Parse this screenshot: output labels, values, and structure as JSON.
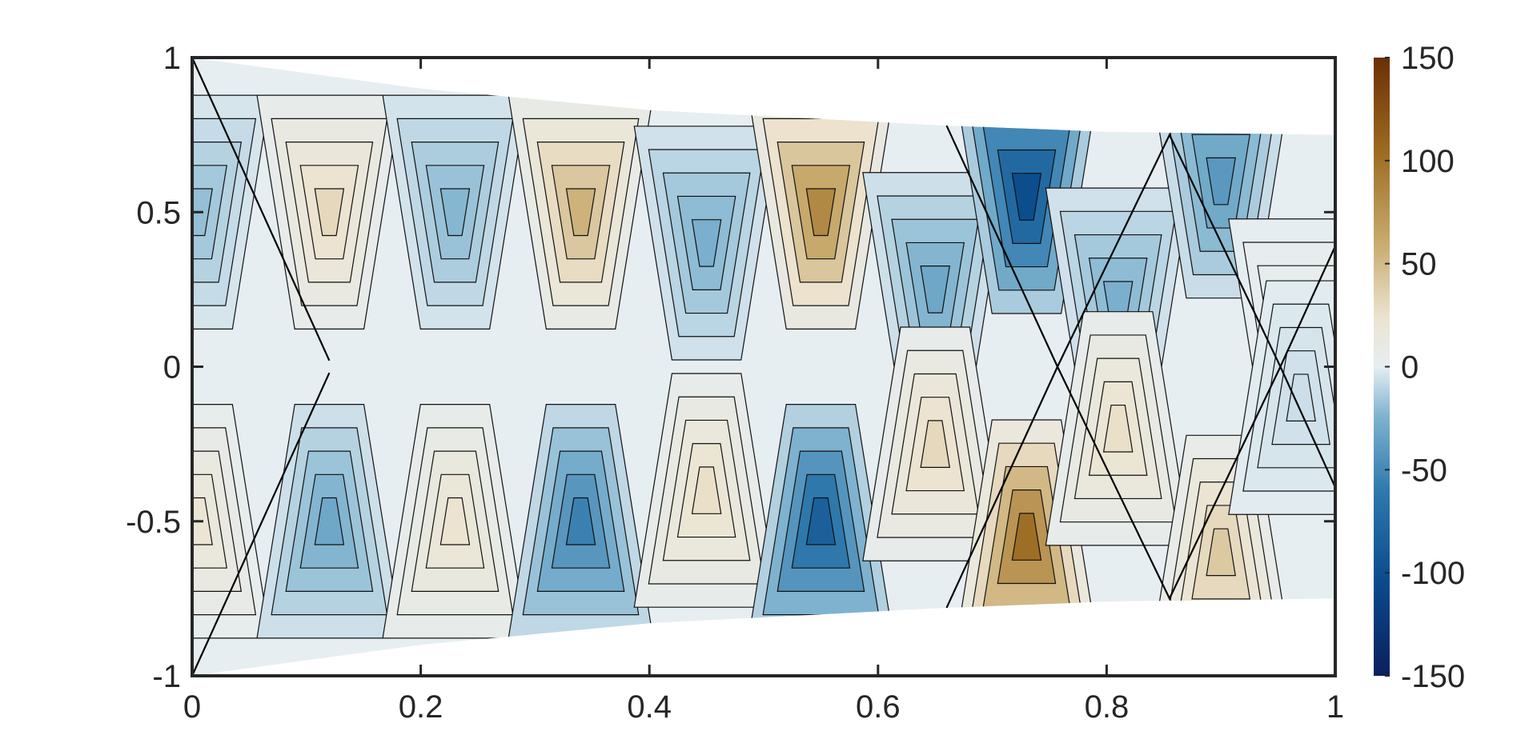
{
  "chart_data": {
    "type": "heatmap",
    "title": "",
    "xlabel": "",
    "ylabel": "",
    "xlim": [
      0,
      1
    ],
    "ylim": [
      -1,
      1
    ],
    "xticks": [
      0,
      0.2,
      0.4,
      0.6,
      0.8,
      1
    ],
    "xtick_labels": [
      "0",
      "0.2",
      "0.4",
      "0.6",
      "0.8",
      "1"
    ],
    "yticks": [
      1,
      0.5,
      0,
      -0.5,
      -1
    ],
    "ytick_labels": [
      "1",
      "0.5",
      "0",
      "-0.5",
      "-1"
    ],
    "grid": false,
    "colorbar": {
      "orientation": "vertical",
      "location": "right",
      "limits": [
        -150,
        150
      ],
      "ticks": [
        150,
        100,
        50,
        0,
        -50,
        -100,
        -150
      ],
      "tick_labels": [
        "150",
        "100",
        "50",
        "0",
        "-50",
        "-100",
        "-150"
      ],
      "colormap": "brown-white-blue diverging",
      "colors": [
        "#0b1f5e",
        "#0a4a8c",
        "#2f79ad",
        "#7fb3cf",
        "#e6eef2",
        "#ece3cf",
        "#c8ab6e",
        "#9c6a20",
        "#6a2f06"
      ]
    },
    "domain": {
      "top_boundary": [
        [
          0,
          1
        ],
        [
          0.2,
          0.9
        ],
        [
          0.4,
          0.83
        ],
        [
          0.66,
          0.78
        ],
        [
          0.8,
          0.76
        ],
        [
          1,
          0.75
        ]
      ],
      "bottom_boundary": [
        [
          0,
          -1
        ],
        [
          0.2,
          -0.9
        ],
        [
          0.4,
          -0.83
        ],
        [
          0.66,
          -0.78
        ],
        [
          0.8,
          -0.76
        ],
        [
          1,
          -0.75
        ]
      ],
      "interface_vertices": [
        [
          0.66,
          0.78
        ],
        [
          0.757,
          0
        ],
        [
          0.855,
          0.75
        ],
        [
          0.952,
          0
        ],
        [
          1,
          0.39
        ],
        [
          0.66,
          -0.78
        ],
        [
          0.855,
          -0.75
        ],
        [
          0.952,
          0
        ],
        [
          1,
          -0.39
        ]
      ]
    },
    "cells": [
      {
        "x": 0.005,
        "y": 0.5,
        "value": -30
      },
      {
        "x": 0.005,
        "y": -0.5,
        "value": 30
      },
      {
        "x": 0.12,
        "y": 0.5,
        "value": 45
      },
      {
        "x": 0.12,
        "y": -0.5,
        "value": -45
      },
      {
        "x": 0.23,
        "y": 0.5,
        "value": -35
      },
      {
        "x": 0.23,
        "y": -0.5,
        "value": 35
      },
      {
        "x": 0.34,
        "y": 0.5,
        "value": 70
      },
      {
        "x": 0.34,
        "y": -0.5,
        "value": -70
      },
      {
        "x": 0.45,
        "y": 0.4,
        "value": -40
      },
      {
        "x": 0.45,
        "y": -0.4,
        "value": 40
      },
      {
        "x": 0.55,
        "y": 0.5,
        "value": 95
      },
      {
        "x": 0.55,
        "y": -0.5,
        "value": -95
      },
      {
        "x": 0.65,
        "y": 0.25,
        "value": -45
      },
      {
        "x": 0.65,
        "y": -0.25,
        "value": 45
      },
      {
        "x": 0.73,
        "y": 0.55,
        "value": -110
      },
      {
        "x": 0.73,
        "y": -0.55,
        "value": 110
      },
      {
        "x": 0.81,
        "y": 0.2,
        "value": -40
      },
      {
        "x": 0.81,
        "y": -0.2,
        "value": 40
      },
      {
        "x": 0.9,
        "y": 0.6,
        "value": -55
      },
      {
        "x": 0.9,
        "y": -0.6,
        "value": 55
      },
      {
        "x": 0.97,
        "y": 0.1,
        "value": 10
      },
      {
        "x": 0.97,
        "y": -0.1,
        "value": -10
      }
    ]
  }
}
